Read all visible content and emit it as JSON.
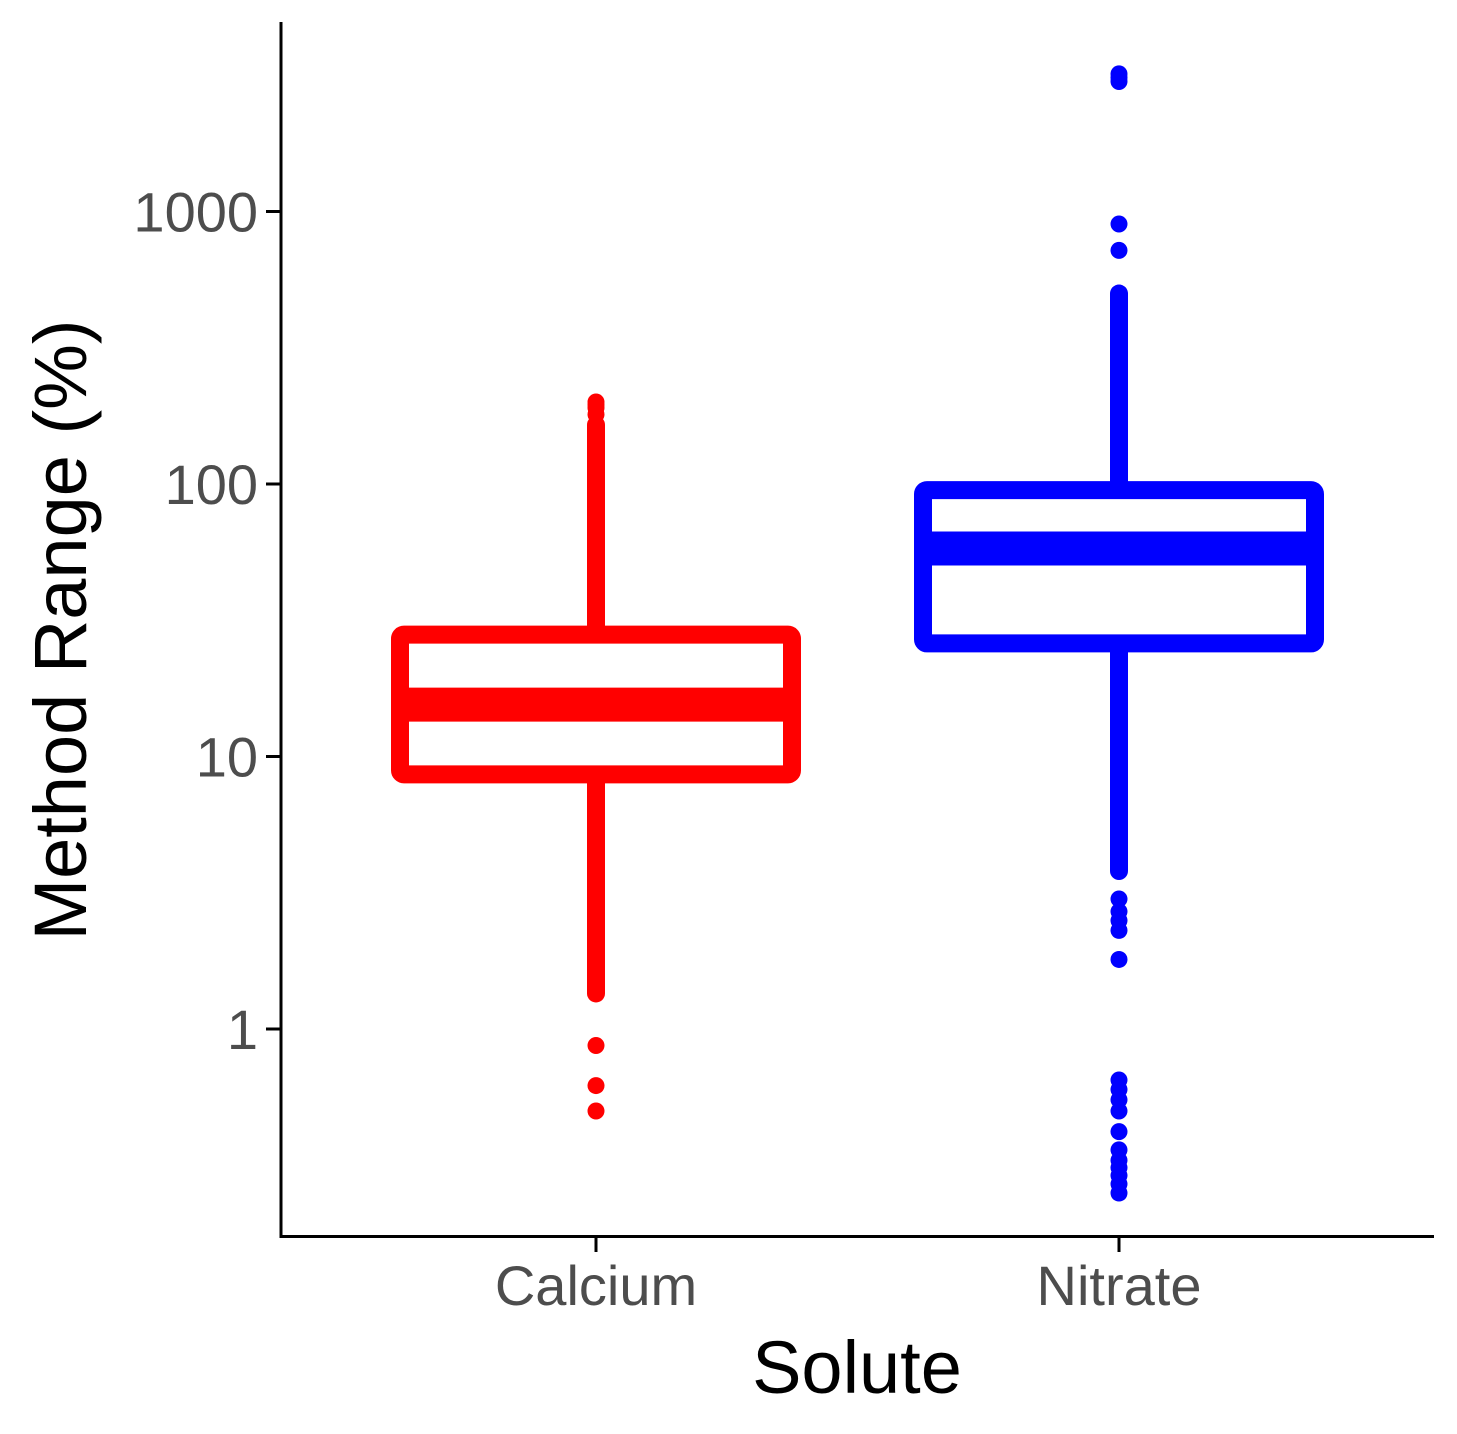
{
  "chart_data": {
    "type": "box",
    "xlabel": "Solute",
    "ylabel": "Method Range (%)",
    "y_scale": "log10",
    "ylim": [
      0.2,
      5000
    ],
    "y_ticks": [
      1,
      10,
      100,
      1000
    ],
    "y_tick_labels": [
      "1",
      "10",
      "100",
      "1000"
    ],
    "categories": [
      "Calcium",
      "Nitrate"
    ],
    "grid": false,
    "legend": "none",
    "series": [
      {
        "category": "Calcium",
        "color": "#ff0000",
        "whisker_low": 1.35,
        "q1": 8.6,
        "median": 15.5,
        "q3": 28,
        "whisker_high": 165,
        "outliers": [
          0.5,
          0.62,
          0.87,
          180,
          190,
          195,
          200
        ]
      },
      {
        "category": "Nitrate",
        "color": "#0000ff",
        "whisker_low": 3.8,
        "q1": 26,
        "median": 58,
        "q3": 95,
        "whisker_high": 500,
        "outliers": [
          0.25,
          0.27,
          0.29,
          0.31,
          0.33,
          0.36,
          0.42,
          0.5,
          0.55,
          0.6,
          0.65,
          1.8,
          2.3,
          2.5,
          2.7,
          3.0,
          720,
          900,
          3000,
          3100,
          3200
        ]
      }
    ]
  }
}
